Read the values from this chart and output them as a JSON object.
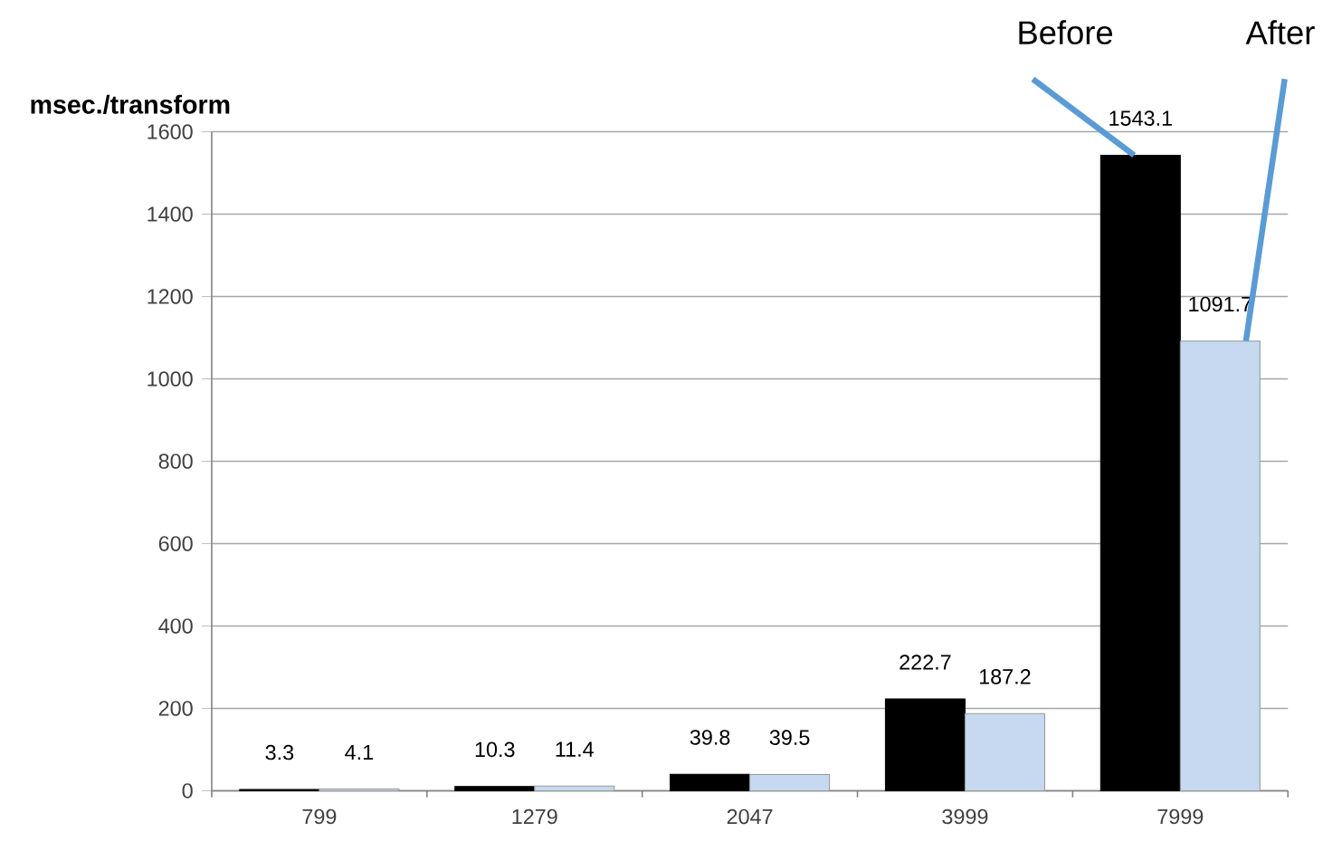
{
  "chart_data": {
    "type": "bar",
    "ylabel": "msec./transform",
    "categories": [
      "799",
      "1279",
      "2047",
      "3999",
      "7999"
    ],
    "series": [
      {
        "name": "Before",
        "color": "#000000",
        "values": [
          3.3,
          10.3,
          39.8,
          222.7,
          1543.1
        ]
      },
      {
        "name": "After",
        "color": "#c6d9f1",
        "values": [
          4.1,
          11.4,
          39.5,
          187.2,
          1091.7
        ]
      }
    ],
    "ylim": [
      0,
      1600
    ],
    "yticks": [
      0,
      200,
      400,
      600,
      800,
      1000,
      1200,
      1400,
      1600
    ],
    "grid": "y",
    "data_labels": true
  }
}
